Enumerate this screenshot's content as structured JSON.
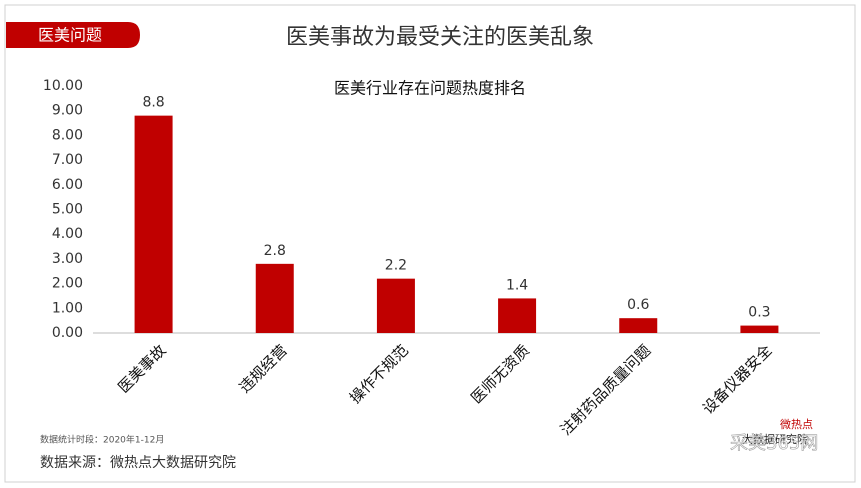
{
  "tag": "医美问题",
  "chart_data": {
    "type": "bar",
    "title": "医美事故为最受关注的医美乱象",
    "subtitle": "医美行业存在问题热度排名",
    "categories": [
      "医美事故",
      "违规经营",
      "操作不规范",
      "医师无资质",
      "注射药品质量问题",
      "设备仪器安全"
    ],
    "values": [
      8.8,
      2.8,
      2.2,
      1.4,
      0.6,
      0.3
    ],
    "color": "#c00000",
    "ylim": [
      0,
      10
    ],
    "yticks": [
      {
        "value": 0,
        "label": "0.00"
      },
      {
        "value": 1,
        "label": "1.00"
      },
      {
        "value": 2,
        "label": "2.00"
      },
      {
        "value": 3,
        "label": "3.00"
      },
      {
        "value": 4,
        "label": "4.00"
      },
      {
        "value": 5,
        "label": "5.00"
      },
      {
        "value": 6,
        "label": "6.00"
      },
      {
        "value": 7,
        "label": "7.00"
      },
      {
        "value": 8,
        "label": "8.00"
      },
      {
        "value": 9,
        "label": "9.00"
      },
      {
        "value": 10,
        "label": "10.00"
      }
    ],
    "grid": false,
    "annotations": [
      "数据统计时段：2020年1-12月",
      "数据来源：微热点大数据研究院"
    ]
  },
  "watermarks": [
    "微热点",
    "大数据研究院",
    "采美365网"
  ]
}
